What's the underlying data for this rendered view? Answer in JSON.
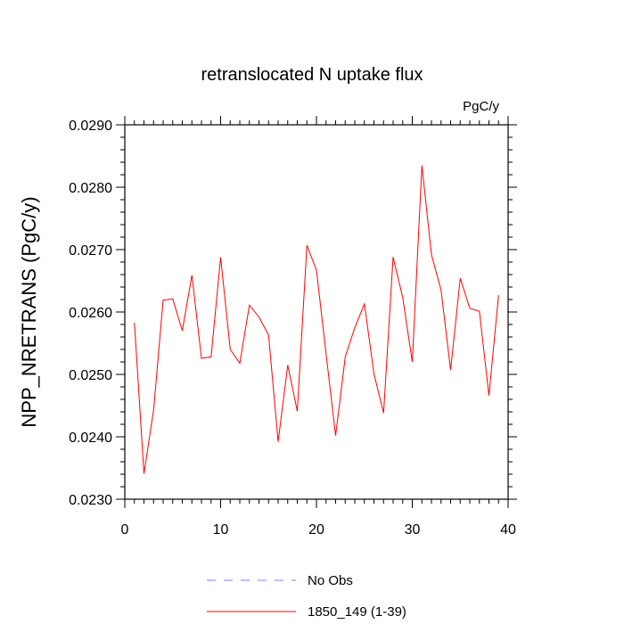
{
  "chart_data": {
    "type": "line",
    "title": "retranslocated N uptake flux",
    "units_label": "PgC/y",
    "xlabel": "",
    "ylabel": "NPP_NRETRANS  (PgC/y)",
    "xlim": [
      0,
      40
    ],
    "ylim": [
      0.023,
      0.029
    ],
    "x_ticks": [
      0,
      10,
      20,
      30,
      40
    ],
    "x_tick_labels": [
      "0",
      "10",
      "20",
      "30",
      "40"
    ],
    "y_ticks": [
      0.023,
      0.024,
      0.025,
      0.026,
      0.027,
      0.028,
      0.029
    ],
    "y_tick_labels": [
      "0.0230",
      "0.0240",
      "0.0250",
      "0.0260",
      "0.0270",
      "0.0280",
      "0.0290"
    ],
    "grid": false,
    "legend_position": "bottom",
    "series": [
      {
        "name": "1850_149 (1-39)",
        "color": "#ff0000",
        "style": "solid",
        "x": [
          1,
          2,
          3,
          4,
          5,
          6,
          7,
          8,
          9,
          10,
          11,
          12,
          13,
          14,
          15,
          16,
          17,
          18,
          19,
          20,
          21,
          22,
          23,
          24,
          25,
          26,
          27,
          28,
          29,
          30,
          31,
          32,
          33,
          34,
          35,
          36,
          37,
          38,
          39
        ],
        "y": [
          0.02583,
          0.02341,
          0.02443,
          0.02619,
          0.02621,
          0.0257,
          0.02659,
          0.02526,
          0.02528,
          0.02688,
          0.0254,
          0.02518,
          0.02611,
          0.02592,
          0.02563,
          0.02392,
          0.02515,
          0.02441,
          0.02707,
          0.02667,
          0.02533,
          0.02402,
          0.02528,
          0.02575,
          0.02613,
          0.02501,
          0.02438,
          0.02688,
          0.02623,
          0.0252,
          0.02835,
          0.02692,
          0.02635,
          0.02507,
          0.02654,
          0.02606,
          0.02601,
          0.02466,
          0.02627
        ]
      }
    ],
    "legend": [
      {
        "label": "No Obs",
        "color": "#8080ff",
        "style": "dashed"
      },
      {
        "label": "1850_149 (1-39)",
        "color": "#ff0000",
        "style": "solid"
      }
    ]
  }
}
